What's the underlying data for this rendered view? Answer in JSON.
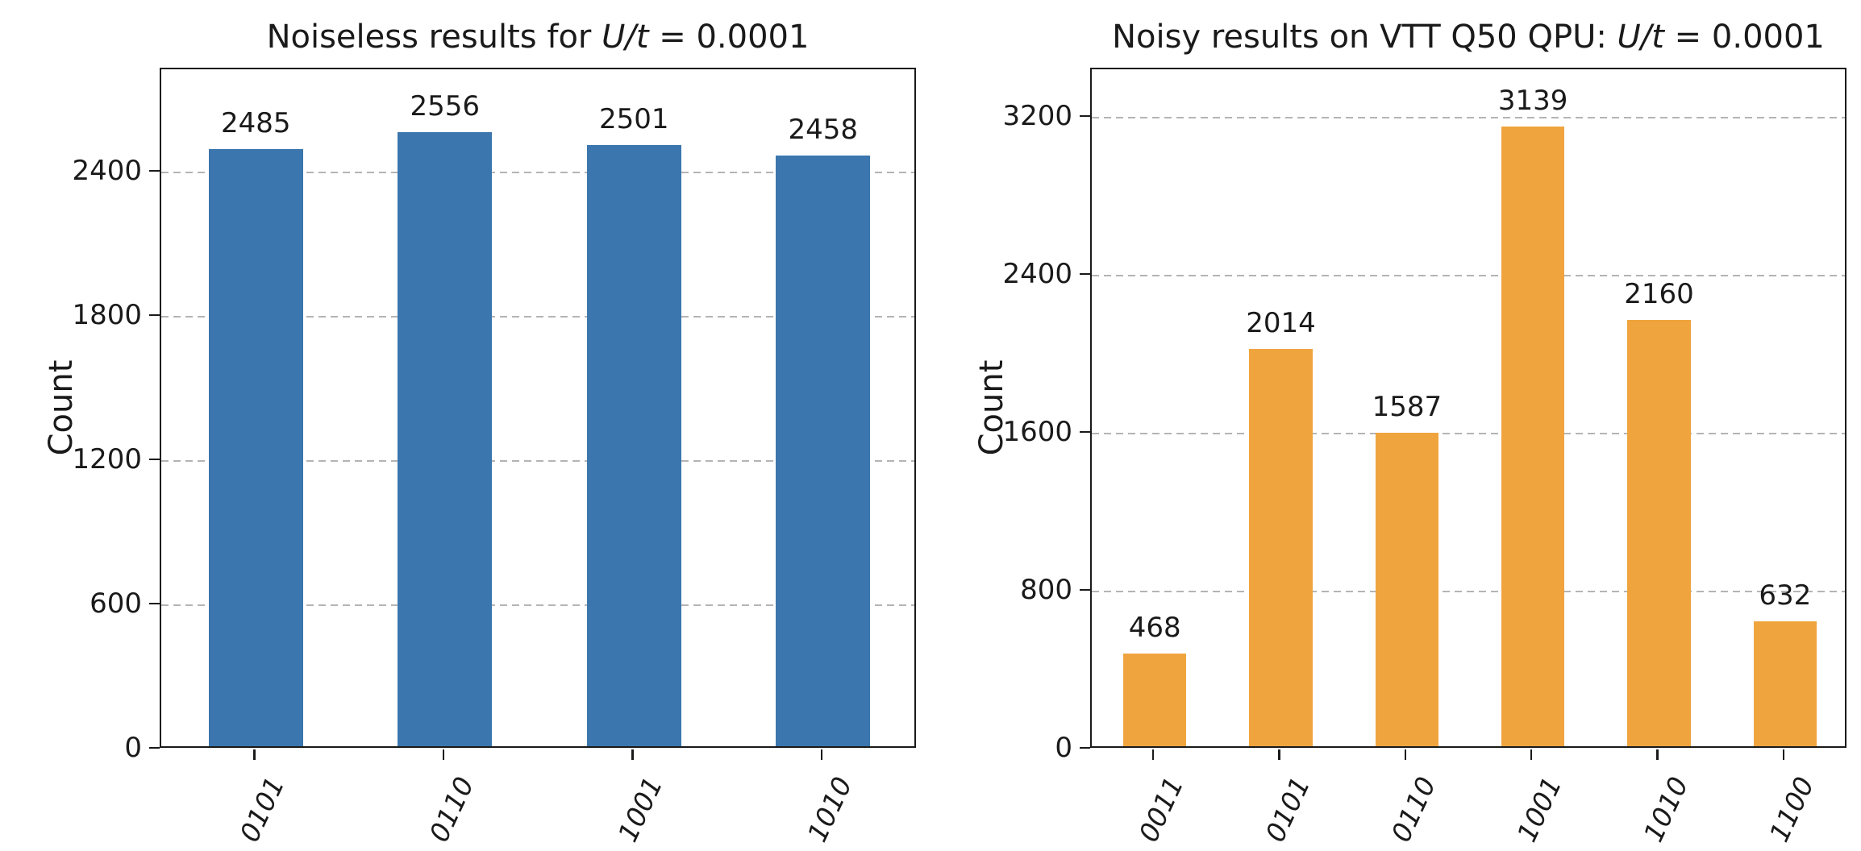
{
  "colors": {
    "background": "#ffffff",
    "frame": "#1a1a1a",
    "gridline": "#b4b4b4",
    "text": "#1a1a1a",
    "noiseless_bar": "#3b76ae",
    "noisy_bar": "#f0a43e"
  },
  "chart_data": [
    {
      "type": "bar",
      "title": "Noiseless results for U/t = 0.0001",
      "title_prefix": "Noiseless results for ",
      "title_math": "U/t",
      "title_suffix": " = 0.0001",
      "ylabel": "Count",
      "xlabel": "",
      "categories": [
        "0101",
        "0110",
        "1001",
        "1010"
      ],
      "values": [
        2485,
        2556,
        2501,
        2458
      ],
      "yticks": [
        0,
        600,
        1200,
        1800,
        2400
      ],
      "ylim": [
        0,
        2830
      ],
      "bar_color": "#3b76ae",
      "grid": "dashed-horizontal",
      "legend_position": "none"
    },
    {
      "type": "bar",
      "title": "Noisy results on VTT Q50 QPU: U/t = 0.0001",
      "title_prefix": "Noisy results on VTT Q50 QPU: ",
      "title_math": "U/t",
      "title_suffix": " = 0.0001",
      "ylabel": "Count",
      "xlabel": "",
      "categories": [
        "0011",
        "0101",
        "0110",
        "1001",
        "1010",
        "1100"
      ],
      "values": [
        468,
        2014,
        1587,
        3139,
        2160,
        632
      ],
      "yticks": [
        0,
        800,
        1600,
        2400,
        3200
      ],
      "ylim": [
        0,
        3445
      ],
      "bar_color": "#f0a43e",
      "grid": "dashed-horizontal",
      "legend_position": "none"
    }
  ]
}
